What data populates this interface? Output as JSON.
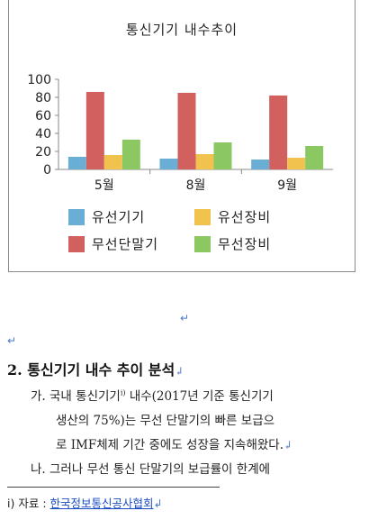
{
  "chart_data": {
    "type": "bar",
    "title": "통신기기 내수추이",
    "categories": [
      "5월",
      "8월",
      "9월"
    ],
    "ylim": [
      0,
      100
    ],
    "yticks": [
      0,
      20,
      40,
      60,
      80,
      100
    ],
    "grid": false,
    "legend_position": "bottom",
    "series": [
      {
        "name": "유선기기",
        "color": "#6aaed6",
        "values": [
          14,
          12,
          11
        ]
      },
      {
        "name": "무선단말기",
        "color": "#d1605e",
        "values": [
          86,
          85,
          82
        ]
      },
      {
        "name": "유선장비",
        "color": "#f2c24f",
        "values": [
          16,
          17,
          13
        ]
      },
      {
        "name": "무선장비",
        "color": "#8cc862",
        "values": [
          33,
          30,
          26
        ]
      }
    ]
  },
  "marks": {
    "paragraph": "↵",
    "line_break": "↲"
  },
  "section": {
    "number": "2.",
    "title": "통신기기 내수 추이 분석"
  },
  "paragraphs": [
    {
      "label": "가.",
      "lines": [
        "국내 통신기기",
        "내수(2017년 기준 통신기기",
        "생산의 75%)는 무선 단말기의 빠른 보급으",
        "로 IMF체제 기간 중에도 성장을 지속해왔다."
      ]
    },
    {
      "label": "나.",
      "lines": [
        "그러나 무선 통신 단말기의 보급률이 한계에"
      ]
    }
  ],
  "footnote": {
    "ref": "i)",
    "label": "자료 :",
    "link_text": "한국정보통신공사협회"
  }
}
